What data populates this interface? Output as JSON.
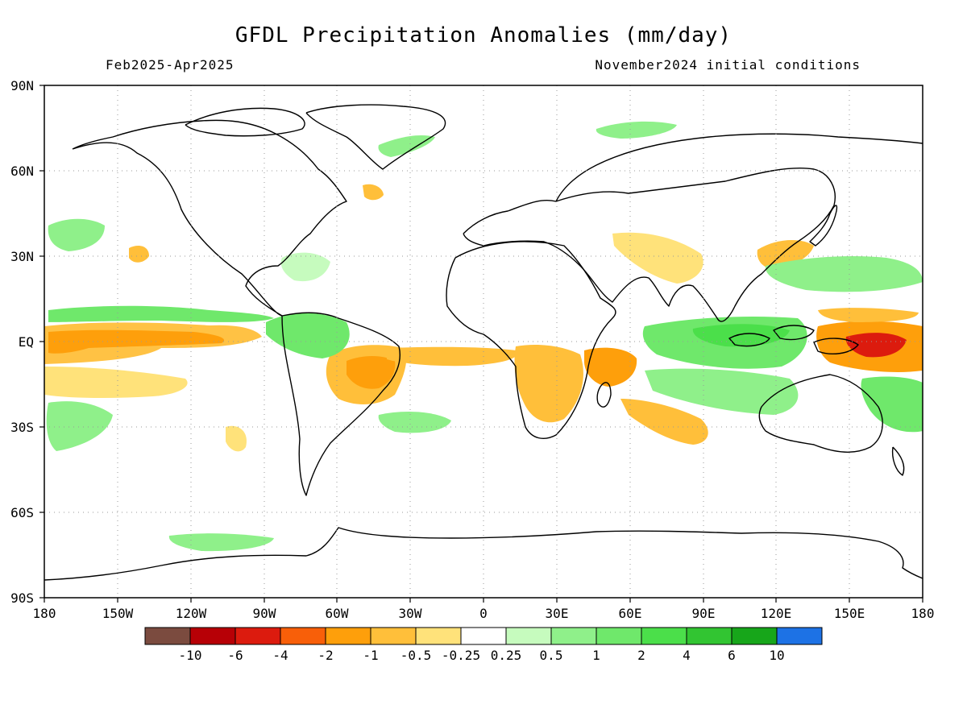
{
  "title": "GFDL Precipitation Anomalies (mm/day)",
  "period": "Feb2025-Apr2025",
  "init": "November2024 initial conditions",
  "lat_ticks": [
    "90N",
    "60N",
    "30N",
    "EQ",
    "30S",
    "60S",
    "90S"
  ],
  "lon_ticks": [
    "180",
    "150W",
    "120W",
    "90W",
    "60W",
    "30W",
    "0",
    "30E",
    "60E",
    "90E",
    "120E",
    "150E",
    "180"
  ],
  "colorbar": {
    "colors": [
      "#7b4b3f",
      "#b70006",
      "#dc1b0e",
      "#f85f09",
      "#fe9f0b",
      "#ffbf3a",
      "#ffe27a",
      "#ffffff",
      "#c6fbbe",
      "#8ff08a",
      "#6fe86b",
      "#4bdf4a",
      "#32c532",
      "#17a61a",
      "#1d72e5"
    ],
    "labels": [
      "-10",
      "-6",
      "-4",
      "-2",
      "-1",
      "-0.5",
      "-0.25",
      "0.25",
      "0.5",
      "1",
      "2",
      "4",
      "6",
      "10"
    ]
  }
}
